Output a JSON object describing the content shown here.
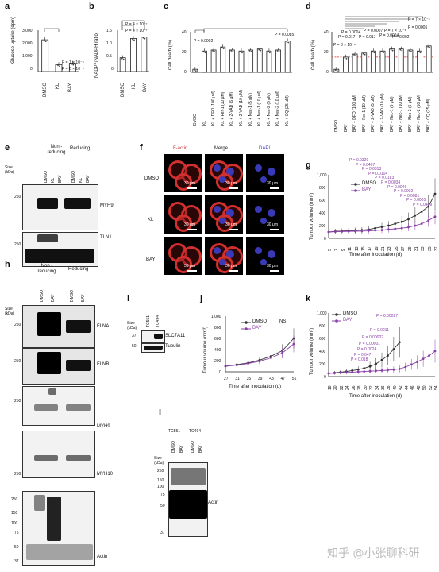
{
  "panels": {
    "a": {
      "label": "a",
      "ylabel": "Glucose uptake (dpm)",
      "yticks": [
        "3,000",
        "2,000",
        "1,000",
        "0"
      ],
      "xlabels": [
        "DMSO",
        "KL",
        "BAY"
      ],
      "pvals": [
        "P = 1 × 10⁻⁸",
        "P = 6 × 10⁻⁸"
      ]
    },
    "b": {
      "label": "b",
      "ylabel": "NADP⁺/NADPH ratio",
      "yticks": [
        "1.5",
        "1.0",
        "0.5",
        "0"
      ],
      "xlabels": [
        "DMSO",
        "KL",
        "BAY"
      ],
      "pvals": [
        "P = 4 × 10⁻⁷",
        "P = 4 × 10⁻⁷"
      ]
    },
    "c": {
      "label": "c",
      "ylabel": "Cell death (%)",
      "yticks": [
        "40",
        "20",
        "0"
      ],
      "pvals": [
        "P = 0.0002",
        "P = 0.0085"
      ],
      "xlabels": [
        "DMSO",
        "KL",
        "KL + DFO (100 μM)",
        "KL + Fer-1 (10 μM)",
        "KL + Z-VAD (5 μM)",
        "KL + Z-VAD (10 μM)",
        "KL + Nec-1 (5 μM)",
        "KL + Nec-1 (10 μM)",
        "KL + Nec-2 (5 μM)",
        "KL + Nec-2 (10 μM)",
        "KL + CQ (25 μM)"
      ]
    },
    "d": {
      "label": "d",
      "ylabel": "Cell death (%)",
      "yticks": [
        "40",
        "20",
        "0"
      ],
      "pvals": [
        "P = 3 × 10⁻⁸",
        "P = 0.017",
        "P = 0.0004",
        "P = 0.017",
        "P = 0.0007",
        "P = 7 × 10⁻⁶",
        "P = 0.0004",
        "P = 0.002",
        "P = 0.0005",
        "P = 7 × 10⁻⁶"
      ],
      "xlabels": [
        "DMSO",
        "BAY",
        "BAY + DFO (100 μM)",
        "BAY + Fer-1 (10 μM)",
        "BAY + Z-VAD (5 μM)",
        "BAY + Z-VAD (10 μM)",
        "BAY + Nec-1 (5 μM)",
        "BAY + Nec-1 (10 μM)",
        "BAY + Nec-2 (5 μM)",
        "BAY + Nec-2 (10 μM)",
        "BAY + CQ (25 μM)"
      ]
    },
    "e": {
      "label": "e",
      "hdr_nonred": "Non -reducing",
      "hdr_red": "Reducing",
      "size": "Size (kDa)",
      "lanes": [
        "DMSO",
        "KL",
        "BAY",
        "DMSO",
        "KL",
        "BAY"
      ],
      "blots": [
        {
          "marker": "250",
          "name": "MYH9"
        },
        {
          "marker": "250",
          "name": "TLN1"
        }
      ]
    },
    "f": {
      "label": "f",
      "cols": [
        "F-actin",
        "Merge",
        "DAPI"
      ],
      "rows": [
        "DMSO",
        "KL",
        "BAY"
      ],
      "scale": "30 μm"
    },
    "g": {
      "label": "g",
      "ylabel": "Tumour volume (mm³)",
      "xlabel": "Time after inoculation (d)",
      "legend": [
        "DMSO",
        "BAY"
      ],
      "yticks": [
        "1,000",
        "800",
        "600",
        "400",
        "200",
        "0"
      ],
      "pvals": [
        "P = 0.0409",
        "P = 0.0005",
        "P = 0.0081",
        "P = 0.0092",
        "P = 0.0046",
        "P = 0.0034",
        "P = 0.0183",
        "P = 0.0104",
        "P = 0.0313",
        "P = 0.0407",
        "P = 0.0329"
      ]
    },
    "h": {
      "label": "h",
      "hdr_nonred": "Non -reducing",
      "hdr_red": "Reducing",
      "size": "Size (kDa)",
      "lanes": [
        "DMSO",
        "BAY",
        "DMSO",
        "BAY"
      ],
      "blots": [
        {
          "markers": [
            "250"
          ],
          "name": "FLNA"
        },
        {
          "markers": [
            "250"
          ],
          "name": "FLNB"
        },
        {
          "markers": [
            "250"
          ],
          "name": "MYH9"
        },
        {
          "markers": [
            "250"
          ],
          "name": "MYH10"
        },
        {
          "markers": [
            "250",
            "150",
            "100",
            "75",
            "50",
            "37"
          ],
          "name": "Actin"
        }
      ]
    },
    "i": {
      "label": "i",
      "size": "Size (kDa)",
      "lanes": [
        "TC551",
        "TC494"
      ],
      "rows": [
        {
          "marker": "37",
          "name": "SLC7A11"
        },
        {
          "marker": "50",
          "name": "Tubulin"
        }
      ]
    },
    "j": {
      "label": "j",
      "ylabel": "Tumour volume (mm³)",
      "xlabel": "Time after inoculation (d)",
      "legend": [
        "DMSO",
        "BAY"
      ],
      "ns": "NS",
      "yticks": [
        "1,000",
        "800",
        "600",
        "400",
        "200",
        "0"
      ],
      "xticks": [
        "27",
        "31",
        "35",
        "39",
        "43",
        "47",
        "51"
      ]
    },
    "k": {
      "label": "k",
      "ylabel": "Tumour volume (mm³)",
      "xlabel": "Time after inoculation (d)",
      "legend": [
        "DMSO",
        "BAY"
      ],
      "yticks": [
        "1,000",
        "800",
        "600",
        "400",
        "200",
        "0"
      ],
      "xticks": [
        "18",
        "20",
        "22",
        "24",
        "26",
        "28",
        "30",
        "32",
        "34",
        "36",
        "38",
        "40",
        "42",
        "44",
        "46",
        "48",
        "50",
        "52",
        "54"
      ],
      "pvals": [
        "P = 0.00027",
        "P = 0.0011",
        "P = 0.00002",
        "P = 0.00001",
        "P = 0.0024",
        "P = 0.047",
        "P = 0.018"
      ]
    },
    "l": {
      "label": "l",
      "lanes_top": [
        "TC551",
        "TC494"
      ],
      "lanes": [
        "DMSO",
        "BAY",
        "DMSO",
        "BAY"
      ],
      "size": "Size (kDa)",
      "markers": [
        "250",
        "150",
        "100",
        "75",
        "50",
        "37"
      ],
      "name": "Actin"
    }
  },
  "watermark": "知乎 @小张聊科研",
  "chart_data": [
    {
      "type": "bar",
      "panel": "a",
      "categories": [
        "DMSO",
        "KL",
        "BAY"
      ],
      "values": [
        2300,
        500,
        600
      ],
      "ylim": [
        0,
        3000
      ]
    },
    {
      "type": "bar",
      "panel": "b",
      "categories": [
        "DMSO",
        "KL",
        "BAY"
      ],
      "values": [
        0.5,
        1.2,
        1.25
      ],
      "ylim": [
        0,
        1.5
      ]
    },
    {
      "type": "bar",
      "panel": "c",
      "categories": [
        "DMSO",
        "KL",
        "KL + DFO (100 μM)",
        "KL + Fer-1 (10 μM)",
        "KL + Z-VAD (5 μM)",
        "KL + Z-VAD (10 μM)",
        "KL + Nec-1 (5 μM)",
        "KL + Nec-1 (10 μM)",
        "KL + Nec-2 (5 μM)",
        "KL + Nec-2 (10 μM)",
        "KL + CQ (25 μM)"
      ],
      "values": [
        3,
        21,
        22,
        25,
        22,
        21,
        22,
        23,
        21,
        22,
        31
      ],
      "ylim": [
        0,
        40
      ]
    },
    {
      "type": "bar",
      "panel": "d",
      "categories": [
        "DMSO",
        "BAY",
        "BAY + DFO (100 μM)",
        "BAY + Fer-1 (10 μM)",
        "BAY + Z-VAD (5 μM)",
        "BAY + Z-VAD (10 μM)",
        "BAY + Nec-1 (5 μM)",
        "BAY + Nec-1 (10 μM)",
        "BAY + Nec-2 (5 μM)",
        "BAY + Nec-2 (10 μM)",
        "BAY + CQ (25 μM)"
      ],
      "values": [
        3,
        15,
        18,
        19,
        21,
        21,
        23,
        23,
        22,
        21,
        26
      ],
      "ylim": [
        0,
        40
      ]
    },
    {
      "type": "line",
      "panel": "g",
      "x": [
        5,
        7,
        9,
        11,
        13,
        15,
        17,
        19,
        21,
        23,
        25,
        27,
        29,
        31,
        33,
        35,
        37
      ],
      "series": [
        {
          "name": "DMSO",
          "values": [
            100,
            110,
            115,
            120,
            125,
            130,
            140,
            160,
            180,
            200,
            230,
            260,
            300,
            360,
            420,
            500,
            700
          ]
        },
        {
          "name": "BAY",
          "values": [
            100,
            105,
            108,
            110,
            112,
            115,
            118,
            125,
            130,
            140,
            150,
            160,
            175,
            200,
            230,
            280,
            340
          ]
        }
      ],
      "ylim": [
        0,
        1000
      ]
    },
    {
      "type": "line",
      "panel": "j",
      "x": [
        27,
        31,
        35,
        39,
        43,
        47,
        51
      ],
      "series": [
        {
          "name": "DMSO",
          "values": [
            100,
            130,
            160,
            210,
            280,
            380,
            600
          ]
        },
        {
          "name": "BAY",
          "values": [
            100,
            120,
            150,
            190,
            250,
            340,
            500
          ]
        }
      ],
      "ylim": [
        0,
        1000
      ]
    },
    {
      "type": "line",
      "panel": "k",
      "x": [
        18,
        20,
        22,
        24,
        26,
        28,
        30,
        32,
        34,
        36,
        38,
        40,
        42,
        44,
        46,
        48,
        50,
        52,
        54
      ],
      "series": [
        {
          "name": "DMSO",
          "values": [
            50,
            60,
            70,
            80,
            95,
            110,
            130,
            160,
            200,
            260,
            330,
            430,
            540,
            null,
            null,
            null,
            null,
            null,
            null
          ]
        },
        {
          "name": "BAY",
          "values": [
            50,
            55,
            60,
            65,
            70,
            75,
            80,
            85,
            90,
            95,
            100,
            110,
            120,
            150,
            190,
            230,
            280,
            330,
            400
          ]
        }
      ],
      "ylim": [
        0,
        1000
      ]
    }
  ]
}
